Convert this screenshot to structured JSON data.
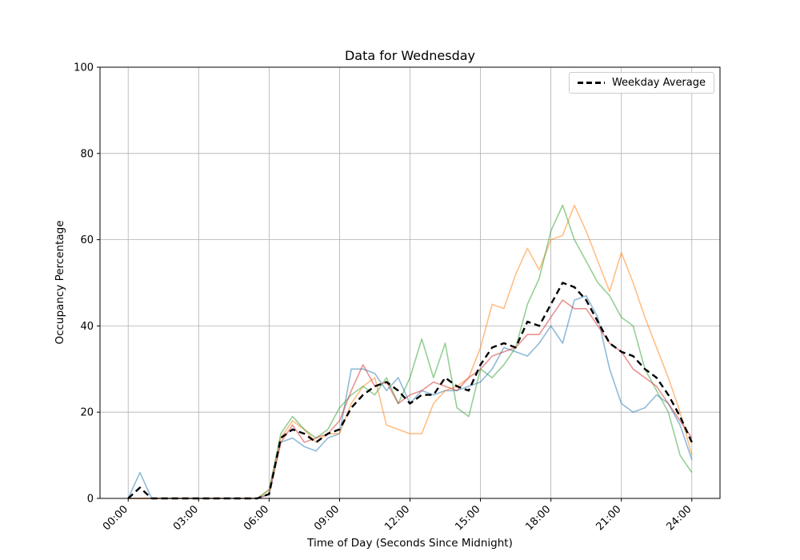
{
  "chart_data": {
    "type": "line",
    "title": "Data for Wednesday",
    "xlabel": "Time of Day (Seconds Since Midnight)",
    "ylabel": "Occupancy Percentage",
    "x_tick_labels": [
      "00:00",
      "03:00",
      "06:00",
      "09:00",
      "12:00",
      "15:00",
      "18:00",
      "21:00",
      "24:00"
    ],
    "x_tick_hours": [
      0,
      3,
      6,
      9,
      12,
      15,
      18,
      21,
      24
    ],
    "y_ticks": [
      0,
      20,
      40,
      60,
      80,
      100
    ],
    "xlim_hours": [
      -1.2,
      25.2
    ],
    "ylim": [
      0,
      100
    ],
    "grid": true,
    "grid_color": "#b0b0b0",
    "background": "#ffffff",
    "legend": {
      "position": "upper right",
      "entries": [
        {
          "label": "Weekday Average",
          "style": "dashed",
          "color": "#000000"
        }
      ]
    },
    "x_hours": [
      0,
      0.5,
      1,
      1.5,
      2,
      2.5,
      3,
      3.5,
      4,
      4.5,
      5,
      5.5,
      6,
      6.5,
      7,
      7.5,
      8,
      8.5,
      9,
      9.5,
      10,
      10.5,
      11,
      11.5,
      12,
      12.5,
      13,
      13.5,
      14,
      14.5,
      15,
      15.5,
      16,
      16.5,
      17,
      17.5,
      18,
      18.5,
      19,
      19.5,
      20,
      20.5,
      21,
      21.5,
      22,
      22.5,
      23,
      23.5,
      24
    ],
    "series": [
      {
        "name": "",
        "color": "#1f77b4",
        "opacity": 0.5,
        "width": 1.6,
        "dashed": false,
        "values": [
          0,
          6,
          0,
          0,
          0,
          0,
          0,
          0,
          0,
          0,
          0,
          0,
          1,
          13,
          14,
          12,
          11,
          14,
          15,
          30,
          30,
          29,
          25,
          28,
          22,
          25,
          24,
          25,
          25,
          26,
          27,
          30,
          35,
          34,
          33,
          36,
          40,
          36,
          46,
          47,
          42,
          30,
          22,
          20,
          21,
          24,
          22,
          17,
          9
        ]
      },
      {
        "name": "",
        "color": "#ff7f0e",
        "opacity": 0.5,
        "width": 1.6,
        "dashed": false,
        "values": [
          0,
          0,
          0,
          0,
          0,
          0,
          0,
          0,
          0,
          0,
          0,
          0,
          2,
          14,
          18,
          16,
          13,
          15,
          15,
          22,
          26,
          28,
          17,
          16,
          15,
          15,
          22,
          25,
          26,
          28,
          35,
          45,
          44,
          52,
          58,
          53,
          60,
          61,
          68,
          62,
          55,
          48,
          57,
          50,
          42,
          35,
          28,
          20,
          10
        ]
      },
      {
        "name": "",
        "color": "#2ca02c",
        "opacity": 0.5,
        "width": 1.6,
        "dashed": false,
        "values": [
          0,
          0,
          0,
          0,
          0,
          0,
          0,
          0,
          0,
          0,
          0,
          0,
          2,
          15,
          19,
          16,
          14,
          16,
          21,
          24,
          26,
          24,
          28,
          22,
          28,
          37,
          28,
          36,
          21,
          19,
          30,
          28,
          31,
          35,
          45,
          51,
          62,
          68,
          60,
          55,
          50,
          47,
          42,
          40,
          30,
          25,
          20,
          10,
          6
        ]
      },
      {
        "name": "",
        "color": "#d62728",
        "opacity": 0.5,
        "width": 1.6,
        "dashed": false,
        "values": [
          0,
          0,
          0,
          0,
          0,
          0,
          0,
          0,
          0,
          0,
          0,
          0,
          1,
          13,
          17,
          13,
          14,
          15,
          18,
          25,
          31,
          26,
          27,
          22,
          24,
          25,
          27,
          26,
          25,
          28,
          30,
          33,
          34,
          35,
          38,
          38,
          42,
          46,
          44,
          44,
          40,
          36,
          34,
          30,
          28,
          26,
          22,
          18,
          14
        ]
      },
      {
        "name": "Weekday Average",
        "color": "#000000",
        "opacity": 1,
        "width": 2.4,
        "dashed": true,
        "values": [
          0,
          2.5,
          0,
          0,
          0,
          0,
          0,
          0,
          0,
          0,
          0,
          0,
          1,
          14,
          16,
          15,
          13,
          15,
          16,
          21,
          24,
          26,
          27,
          25,
          22,
          24,
          24,
          28,
          26,
          25,
          31,
          35,
          36,
          35,
          41,
          40,
          45,
          50,
          49,
          46,
          41,
          36,
          34,
          33,
          30,
          28,
          24,
          19,
          13
        ]
      }
    ]
  }
}
